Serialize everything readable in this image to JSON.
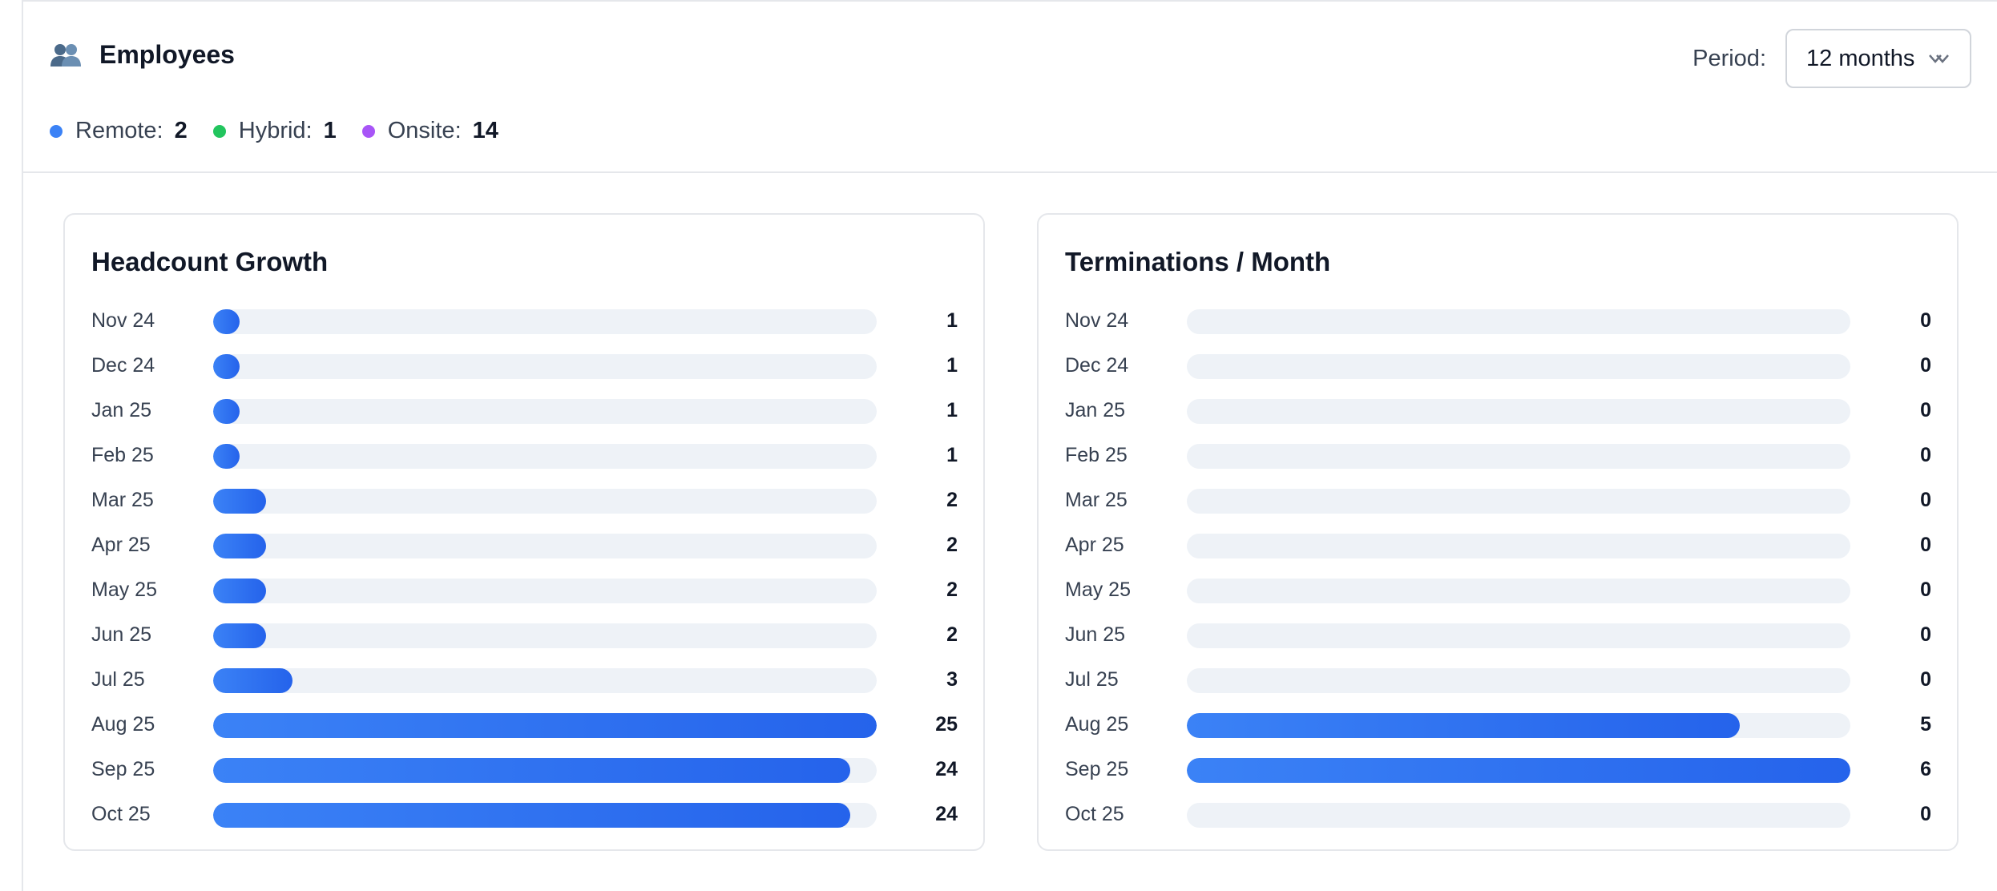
{
  "header": {
    "title": "Employees",
    "icon": "users-icon",
    "period_label": "Period:",
    "period_value": "12 months"
  },
  "legend": [
    {
      "label": "Remote:",
      "count": "2",
      "color": "#3b82f6"
    },
    {
      "label": "Hybrid:",
      "count": "1",
      "color": "#22c55e"
    },
    {
      "label": "Onsite:",
      "count": "14",
      "color": "#a855f7"
    }
  ],
  "chart_data": [
    {
      "type": "bar",
      "title": "Headcount Growth",
      "orientation": "horizontal",
      "categories": [
        "Nov 24",
        "Dec 24",
        "Jan 25",
        "Feb 25",
        "Mar 25",
        "Apr 25",
        "May 25",
        "Jun 25",
        "Jul 25",
        "Aug 25",
        "Sep 25",
        "Oct 25"
      ],
      "values": [
        1,
        1,
        1,
        1,
        2,
        2,
        2,
        2,
        3,
        25,
        24,
        24
      ],
      "max": 25,
      "color": "#2563eb"
    },
    {
      "type": "bar",
      "title": "Terminations / Month",
      "orientation": "horizontal",
      "categories": [
        "Nov 24",
        "Dec 24",
        "Jan 25",
        "Feb 25",
        "Mar 25",
        "Apr 25",
        "May 25",
        "Jun 25",
        "Jul 25",
        "Aug 25",
        "Sep 25",
        "Oct 25"
      ],
      "values": [
        0,
        0,
        0,
        0,
        0,
        0,
        0,
        0,
        0,
        5,
        6,
        0
      ],
      "max": 6,
      "color": "#2563eb"
    }
  ]
}
